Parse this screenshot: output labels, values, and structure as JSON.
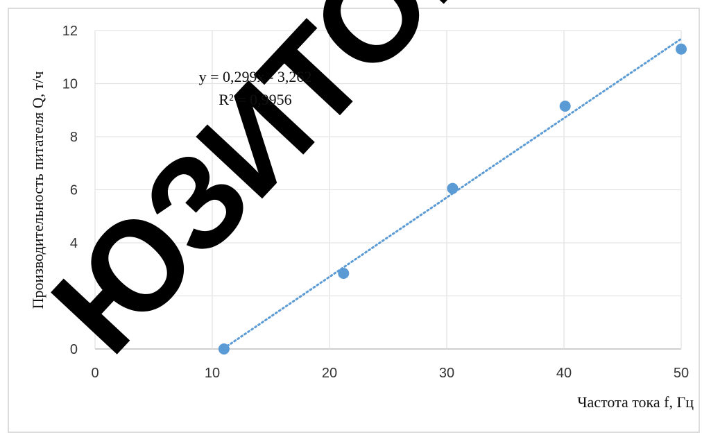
{
  "chart_data": {
    "type": "scatter",
    "title": "",
    "xlabel": "Частота тока  f, Гц",
    "ylabel": "Производительность питателя Q, т/ч",
    "xlim": [
      0,
      50
    ],
    "ylim": [
      0,
      12
    ],
    "x_ticks": [
      0,
      10,
      20,
      30,
      40,
      50
    ],
    "y_ticks": [
      0,
      2,
      4,
      6,
      8,
      10,
      12
    ],
    "grid": true,
    "legend": "none",
    "series": [
      {
        "points": [
          {
            "x": 11,
            "y": 0.0
          },
          {
            "x": 21.2,
            "y": 2.85
          },
          {
            "x": 30.5,
            "y": 6.05
          },
          {
            "x": 40.1,
            "y": 9.15
          },
          {
            "x": 50,
            "y": 11.3
          }
        ]
      }
    ],
    "trendline": {
      "type": "linear",
      "slope": 0.299,
      "intercept": -3.262,
      "x_range": [
        11,
        50
      ],
      "equation": "y = 0,299x - 3,262",
      "r_squared": "R² = 0,9956"
    },
    "colors": {
      "marker": "#5b9bd5",
      "trendline": "#5b9bd5",
      "grid": "#e3e3e3",
      "watermark": "#000000"
    }
  },
  "watermark": {
    "text": "ЮЗИТОР",
    "color": "#000000"
  }
}
